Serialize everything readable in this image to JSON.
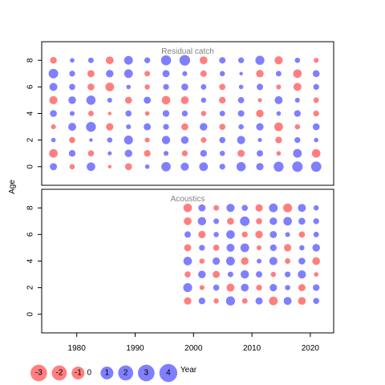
{
  "chart_data": {
    "type": "scatter",
    "subtype": "bubble-residuals",
    "xlabel": "Year",
    "ylabel": "Age",
    "x_ticks": [
      1980,
      1990,
      2000,
      2010,
      2020
    ],
    "y_ticks": [
      0,
      2,
      4,
      6,
      8
    ],
    "xlim": [
      1974,
      2024
    ],
    "ylim": [
      -1.4,
      9.4
    ],
    "colors": {
      "positive": "#0000ff",
      "negative": "#ff0000",
      "frame": "#000000",
      "title": "#808080"
    },
    "panels": [
      {
        "title": "Residual catch",
        "years": [
          1976,
          2021
        ],
        "ages": [
          0,
          8
        ],
        "residuals": [
          [
            1.3,
            -0.6,
            2.0,
            -0.2,
            -1.2,
            0.4,
            2.5,
            1.8,
            2.1,
            0.8,
            2.4,
            1.4,
            2.9,
            3.2,
            3.1
          ],
          [
            -2.0,
            1.1,
            -0.9,
            0.3,
            1.5,
            -1.1,
            0.5,
            -0.8,
            1.1,
            0.6,
            -1.3,
            1.0,
            -0.4,
            2.1,
            -2.0
          ],
          [
            0.4,
            -0.9,
            0.2,
            0.6,
            2.2,
            -0.5,
            1.9,
            1.5,
            -0.7,
            0.9,
            1.8,
            0.3,
            -1.1,
            0.8,
            0.4
          ],
          [
            -0.5,
            1.7,
            2.8,
            -1.4,
            0.5,
            1.3,
            0.8,
            -1.2,
            1.5,
            -0.9,
            0.6,
            1.4,
            -2.1,
            -0.6,
            1.2
          ],
          [
            1.2,
            0.5,
            -0.7,
            -0.2,
            0.9,
            -0.4,
            1.1,
            0.8,
            -0.6,
            0.7,
            1.0,
            -1.5,
            0.4,
            1.1,
            -0.8
          ],
          [
            -1.8,
            1.5,
            2.4,
            0.5,
            -1.2,
            1.3,
            -2.0,
            -1.6,
            0.6,
            -1.1,
            0.9,
            -0.3,
            1.7,
            0.5,
            -0.7
          ],
          [
            1.7,
            0.9,
            -1.2,
            -2.1,
            0.4,
            -0.6,
            0.8,
            1.2,
            0.7,
            -0.9,
            0.4,
            1.0,
            -0.5,
            -1.7,
            0.8
          ],
          [
            2.6,
            0.8,
            -1.3,
            1.5,
            2.1,
            -0.7,
            1.3,
            0.5,
            -1.0,
            0.6,
            0.2,
            -1.5,
            0.7,
            -2.0,
            1.2
          ],
          [
            -1.1,
            0.4,
            0.7,
            -1.6,
            2.1,
            0.8,
            2.9,
            3.3,
            -1.6,
            1.0,
            0.8,
            2.3,
            -1.8,
            0.6,
            -0.5
          ]
        ]
      },
      {
        "title": "Acoustics",
        "years": [
          1999,
          2021
        ],
        "ages": [
          1,
          8
        ],
        "residuals": [
          [
            -1.4,
            1.1,
            -0.6,
            2.3,
            -0.7,
            1.3,
            -2.1,
            1.7,
            -1.6,
            0.9
          ],
          [
            2.2,
            -0.5,
            0.9,
            -1.7,
            1.6,
            -0.8,
            1.4,
            0.6,
            -1.3,
            1.1
          ],
          [
            -0.9,
            1.5,
            -1.3,
            0.7,
            1.9,
            1.0,
            -0.6,
            0.8,
            1.8,
            -0.4
          ],
          [
            2.0,
            -0.6,
            1.4,
            2.1,
            -1.5,
            0.5,
            1.8,
            -0.7,
            1.2,
            -1.6
          ],
          [
            -1.3,
            0.8,
            -0.9,
            1.7,
            2.1,
            -0.5,
            1.1,
            -1.4,
            0.6,
            1.5
          ],
          [
            1.0,
            -1.4,
            0.6,
            2.0,
            -0.8,
            -1.5,
            1.3,
            0.5,
            -0.9,
            0.7
          ],
          [
            -1.6,
            1.9,
            0.7,
            -1.2,
            2.6,
            -0.9,
            1.5,
            2.0,
            1.2,
            0.8
          ],
          [
            -2.0,
            1.3,
            -0.7,
            1.8,
            0.9,
            -1.4,
            2.1,
            -2.2,
            1.7,
            0.6
          ]
        ]
      }
    ],
    "legend": {
      "position": "bottom-left",
      "entries": [
        {
          "label": "-3",
          "value": -3
        },
        {
          "label": "-2",
          "value": -2
        },
        {
          "label": "-1",
          "value": -1
        },
        {
          "label": "0",
          "value": 0
        },
        {
          "label": "1",
          "value": 1
        },
        {
          "label": "2",
          "value": 2
        },
        {
          "label": "3",
          "value": 3
        },
        {
          "label": "4",
          "value": 4
        }
      ]
    }
  }
}
